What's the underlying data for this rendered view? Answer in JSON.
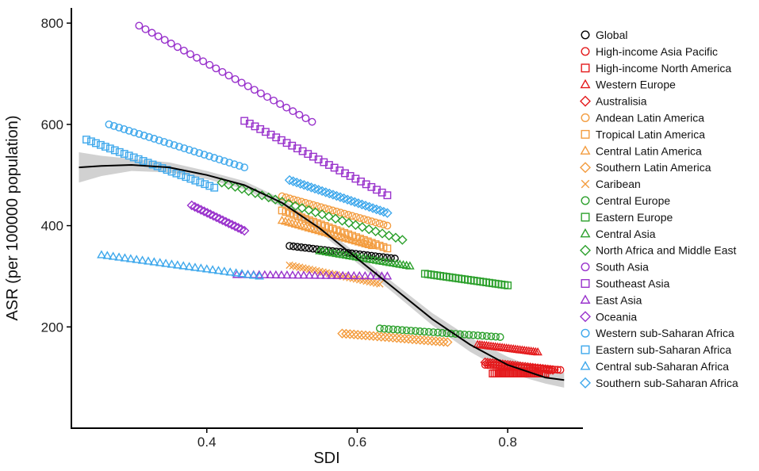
{
  "chart_data": {
    "type": "scatter",
    "title": "",
    "xlabel": "SDI",
    "ylabel": "ASR (per 100000 population)",
    "xlim": [
      0.22,
      0.9
    ],
    "ylim": [
      0,
      830
    ],
    "xticks": [
      {
        "value": 0.4,
        "label": "0.4"
      },
      {
        "value": 0.6,
        "label": "0.6"
      },
      {
        "value": 0.8,
        "label": "0.8"
      }
    ],
    "yticks": [
      {
        "value": 200,
        "label": "200"
      },
      {
        "value": 400,
        "label": "400"
      },
      {
        "value": 600,
        "label": "600"
      },
      {
        "value": 800,
        "label": "800"
      }
    ],
    "legend_position": "right",
    "fit_line": {
      "color": "#000000",
      "band_color": "#bdbdbd",
      "points": [
        [
          0.23,
          515
        ],
        [
          0.26,
          518
        ],
        [
          0.3,
          520
        ],
        [
          0.35,
          515
        ],
        [
          0.4,
          500
        ],
        [
          0.45,
          480
        ],
        [
          0.5,
          445
        ],
        [
          0.55,
          395
        ],
        [
          0.6,
          335
        ],
        [
          0.65,
          275
        ],
        [
          0.7,
          215
        ],
        [
          0.75,
          165
        ],
        [
          0.8,
          125
        ],
        [
          0.85,
          100
        ],
        [
          0.875,
          95
        ]
      ],
      "band_halfwidth": [
        [
          0.23,
          30
        ],
        [
          0.26,
          20
        ],
        [
          0.3,
          12
        ],
        [
          0.35,
          10
        ],
        [
          0.4,
          8
        ],
        [
          0.45,
          8
        ],
        [
          0.5,
          8
        ],
        [
          0.55,
          8
        ],
        [
          0.6,
          9
        ],
        [
          0.65,
          10
        ],
        [
          0.7,
          12
        ],
        [
          0.75,
          14
        ],
        [
          0.8,
          16
        ],
        [
          0.85,
          12
        ],
        [
          0.875,
          15
        ]
      ]
    },
    "series": [
      {
        "name": "Global",
        "color": "#000000",
        "marker": "circle",
        "x": [
          0.51,
          0.65
        ],
        "y": [
          360,
          335
        ],
        "n": 28
      },
      {
        "name": "High-income Asia Pacific",
        "color": "#e41a1c",
        "marker": "circle",
        "x": [
          0.77,
          0.87
        ],
        "y": [
          125,
          115
        ],
        "n": 28
      },
      {
        "name": "High-income North America",
        "color": "#e41a1c",
        "marker": "square",
        "x": [
          0.78,
          0.85
        ],
        "y": [
          108,
          108
        ],
        "n": 28
      },
      {
        "name": "Western Europe",
        "color": "#e41a1c",
        "marker": "triangle",
        "x": [
          0.76,
          0.84
        ],
        "y": [
          165,
          150
        ],
        "n": 28
      },
      {
        "name": "Australisia",
        "color": "#e41a1c",
        "marker": "diamond",
        "x": [
          0.77,
          0.86
        ],
        "y": [
          130,
          115
        ],
        "n": 28
      },
      {
        "name": "Andean Latin America",
        "color": "#f39c3f",
        "marker": "circle",
        "x": [
          0.5,
          0.64
        ],
        "y": [
          458,
          400
        ],
        "n": 28
      },
      {
        "name": "Tropical Latin America",
        "color": "#f39c3f",
        "marker": "square",
        "x": [
          0.5,
          0.64
        ],
        "y": [
          430,
          355
        ],
        "n": 28
      },
      {
        "name": "Central Latin America",
        "color": "#f39c3f",
        "marker": "triangle",
        "x": [
          0.5,
          0.62
        ],
        "y": [
          410,
          360
        ],
        "n": 28
      },
      {
        "name": "Southern Latin America",
        "color": "#f39c3f",
        "marker": "diamond",
        "x": [
          0.58,
          0.72
        ],
        "y": [
          187,
          170
        ],
        "n": 28
      },
      {
        "name": "Caribean",
        "color": "#f39c3f",
        "marker": "cross",
        "x": [
          0.51,
          0.63
        ],
        "y": [
          322,
          285
        ],
        "n": 28
      },
      {
        "name": "Central Europe",
        "color": "#2ca02c",
        "marker": "circle",
        "x": [
          0.63,
          0.79
        ],
        "y": [
          197,
          180
        ],
        "n": 28
      },
      {
        "name": "Eastern Europe",
        "color": "#2ca02c",
        "marker": "square",
        "x": [
          0.69,
          0.8
        ],
        "y": [
          305,
          282
        ],
        "n": 28
      },
      {
        "name": "Central Asia",
        "color": "#2ca02c",
        "marker": "triangle",
        "x": [
          0.55,
          0.67
        ],
        "y": [
          350,
          320
        ],
        "n": 28
      },
      {
        "name": "North Africa and Middle East",
        "color": "#2ca02c",
        "marker": "diamond",
        "x": [
          0.42,
          0.66
        ],
        "y": [
          485,
          372
        ],
        "n": 28
      },
      {
        "name": "South Asia",
        "color": "#9932cc",
        "marker": "circle",
        "x": [
          0.31,
          0.54
        ],
        "y": [
          795,
          605
        ],
        "n": 28
      },
      {
        "name": "Southeast Asia",
        "color": "#9932cc",
        "marker": "square",
        "x": [
          0.45,
          0.64
        ],
        "y": [
          607,
          460
        ],
        "n": 28
      },
      {
        "name": "East Asia",
        "color": "#9932cc",
        "marker": "triangle",
        "x": [
          0.44,
          0.64
        ],
        "y": [
          303,
          300
        ],
        "n": 28
      },
      {
        "name": "Oceania",
        "color": "#9932cc",
        "marker": "diamond",
        "x": [
          0.38,
          0.45
        ],
        "y": [
          440,
          390
        ],
        "n": 18
      },
      {
        "name": "Western sub-Saharan Africa",
        "color": "#3ea8ec",
        "marker": "circle",
        "x": [
          0.27,
          0.45
        ],
        "y": [
          600,
          515
        ],
        "n": 28
      },
      {
        "name": "Eastern sub-Saharan Africa",
        "color": "#3ea8ec",
        "marker": "square",
        "x": [
          0.24,
          0.41
        ],
        "y": [
          570,
          475
        ],
        "n": 28
      },
      {
        "name": "Central sub-Saharan Africa",
        "color": "#3ea8ec",
        "marker": "triangle",
        "x": [
          0.26,
          0.47
        ],
        "y": [
          342,
          300
        ],
        "n": 28
      },
      {
        "name": "Southern sub-Saharan Africa",
        "color": "#3ea8ec",
        "marker": "diamond",
        "x": [
          0.51,
          0.64
        ],
        "y": [
          490,
          425
        ],
        "n": 28
      }
    ]
  }
}
